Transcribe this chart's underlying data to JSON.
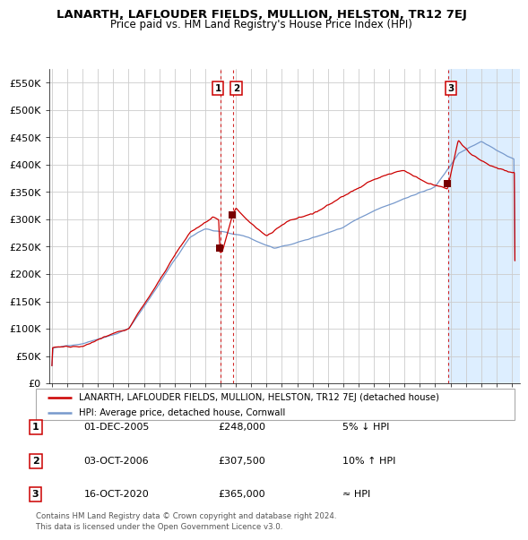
{
  "title": "LANARTH, LAFLOUDER FIELDS, MULLION, HELSTON, TR12 7EJ",
  "subtitle": "Price paid vs. HM Land Registry's House Price Index (HPI)",
  "xlim_start": 1994.8,
  "xlim_end": 2025.5,
  "ylim": [
    0,
    575000
  ],
  "yticks": [
    0,
    50000,
    100000,
    150000,
    200000,
    250000,
    300000,
    350000,
    400000,
    450000,
    500000,
    550000
  ],
  "ytick_labels": [
    "£0",
    "£50K",
    "£100K",
    "£150K",
    "£200K",
    "£250K",
    "£300K",
    "£350K",
    "£400K",
    "£450K",
    "£500K",
    "£550K"
  ],
  "sale1_x": 2005.92,
  "sale1_y": 248000,
  "sale2_x": 2006.75,
  "sale2_y": 307500,
  "sale3_x": 2020.79,
  "sale3_y": 365000,
  "vline1_x": 2006.0,
  "vline2_x": 2006.83,
  "vline3_x": 2020.83,
  "shade_start": 2020.83,
  "shade_end": 2025.5,
  "red_line_color": "#cc0000",
  "blue_line_color": "#7799cc",
  "background_color": "#ffffff",
  "grid_color": "#cccccc",
  "shade_color": "#ddeeff",
  "table_rows": [
    [
      "1",
      "01-DEC-2005",
      "£248,000",
      "5% ↓ HPI"
    ],
    [
      "2",
      "03-OCT-2006",
      "£307,500",
      "10% ↑ HPI"
    ],
    [
      "3",
      "16-OCT-2020",
      "£365,000",
      "≈ HPI"
    ]
  ],
  "legend_label_red": "LANARTH, LAFLOUDER FIELDS, MULLION, HELSTON, TR12 7EJ (detached house)",
  "legend_label_blue": "HPI: Average price, detached house, Cornwall",
  "footnote": "Contains HM Land Registry data © Crown copyright and database right 2024.\nThis data is licensed under the Open Government Licence v3.0."
}
